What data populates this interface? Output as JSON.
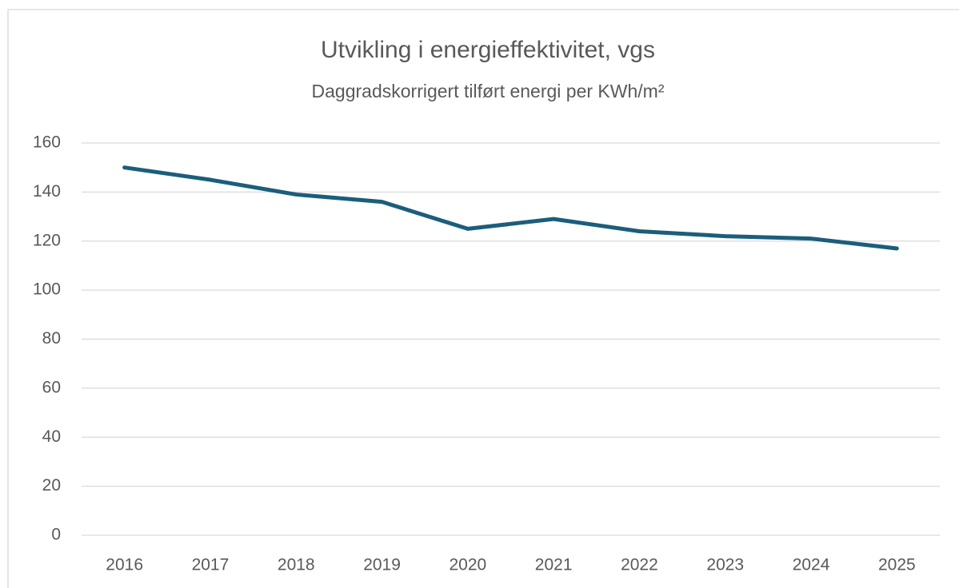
{
  "chart_data": {
    "type": "line",
    "title": "Utvikling i energieffektivitet, vgs",
    "subtitle": "Daggradskorrigert tilført energi per KWh/m²",
    "categories": [
      "2016",
      "2017",
      "2018",
      "2019",
      "2020",
      "2021",
      "2022",
      "2023",
      "2024",
      "2025"
    ],
    "values": [
      150,
      145,
      139,
      136,
      125,
      129,
      124,
      122,
      121,
      117
    ],
    "color": "#1b5e7b",
    "ylim": [
      0,
      160
    ],
    "yticks": [
      0,
      20,
      40,
      60,
      80,
      100,
      120,
      140,
      160
    ],
    "grid": true
  }
}
